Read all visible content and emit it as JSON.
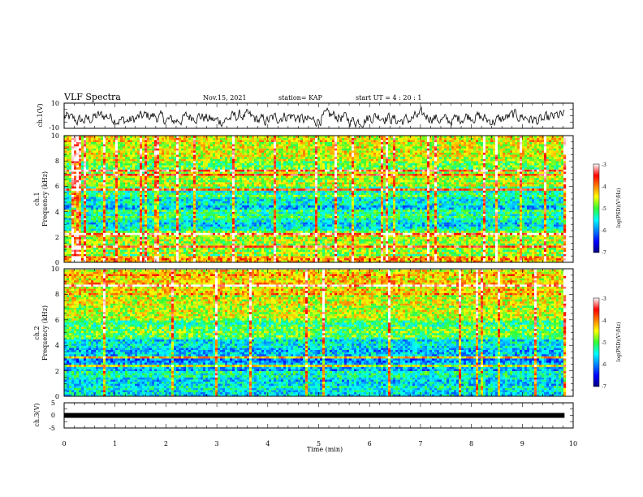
{
  "header": {
    "title": "VLF Spectra",
    "date": "Nov.15, 2021",
    "station": "station= KAP",
    "start": "start  UT =   4 : 20 : 1"
  },
  "chart_data": [
    {
      "type": "line",
      "ylabel": "ch.1(V)",
      "ylim": [
        -10,
        10
      ],
      "yticks": [
        "10",
        "-10"
      ],
      "x_range_min": [
        0,
        9.83
      ],
      "y_center": -2,
      "y_amplitude": 8,
      "color": "#000000"
    },
    {
      "type": "heatmap",
      "ylabel_line1": "ch.1",
      "ylabel_line2": "Frequency (kHz)",
      "ylim": [
        0,
        10
      ],
      "yticks": [
        "0",
        "2",
        "4",
        "6",
        "8",
        "10"
      ],
      "xlim": [
        0,
        10
      ],
      "data_extent_min": 9.83,
      "colorbar": {
        "label": "log(PSD)(V²/Hz)",
        "range": [
          -7,
          -3
        ],
        "ticks": [
          "-3",
          "-4",
          "-5",
          "-6",
          "-7"
        ]
      },
      "bands_khz": [
        {
          "from": 0,
          "to": 0.5,
          "level": -4.2
        },
        {
          "from": 0.5,
          "to": 1.5,
          "level": -4.8
        },
        {
          "from": 1.5,
          "to": 2.5,
          "level": -4.6
        },
        {
          "from": 2.5,
          "to": 3.5,
          "level": -5.6
        },
        {
          "from": 3.5,
          "to": 4.2,
          "level": -5.3
        },
        {
          "from": 4.2,
          "to": 5.2,
          "level": -5.6
        },
        {
          "from": 5.2,
          "to": 6.0,
          "level": -5.3
        },
        {
          "from": 6.0,
          "to": 8.0,
          "level": -4.8
        },
        {
          "from": 8.0,
          "to": 10.0,
          "level": -4.5
        }
      ]
    },
    {
      "type": "heatmap",
      "ylabel_line1": "ch.2",
      "ylabel_line2": "Frequency (kHz)",
      "ylim": [
        0,
        10
      ],
      "yticks": [
        "0",
        "2",
        "4",
        "6",
        "8",
        "10"
      ],
      "xlim": [
        0,
        10
      ],
      "data_extent_min": 9.83,
      "colorbar": {
        "label": "log(PSD)(V²/Hz)",
        "range": [
          -7,
          -3
        ],
        "ticks": [
          "-3",
          "-4",
          "-5",
          "-6",
          "-7"
        ]
      },
      "bands_khz": [
        {
          "from": 0,
          "to": 0.4,
          "level": -5.4
        },
        {
          "from": 0.4,
          "to": 2.0,
          "level": -5.5
        },
        {
          "from": 2.0,
          "to": 3.0,
          "level": -5.9
        },
        {
          "from": 3.0,
          "to": 4.5,
          "level": -5.6
        },
        {
          "from": 4.5,
          "to": 6.0,
          "level": -5.1
        },
        {
          "from": 6.0,
          "to": 8.0,
          "level": -4.6
        },
        {
          "from": 8.0,
          "to": 10.0,
          "level": -4.3
        }
      ]
    },
    {
      "type": "line",
      "ylabel": "ch.3(V)",
      "ylim": [
        -5,
        5
      ],
      "yticks": [
        "5",
        "0",
        "-5"
      ],
      "xlabel": "Time  (min)",
      "xticks": [
        "0",
        "1",
        "2",
        "3",
        "4",
        "5",
        "6",
        "7",
        "8",
        "9",
        "10"
      ],
      "xlim": [
        0,
        10
      ],
      "x_range_min": [
        0,
        9.83
      ],
      "y_value": 0,
      "color": "#000000"
    }
  ]
}
